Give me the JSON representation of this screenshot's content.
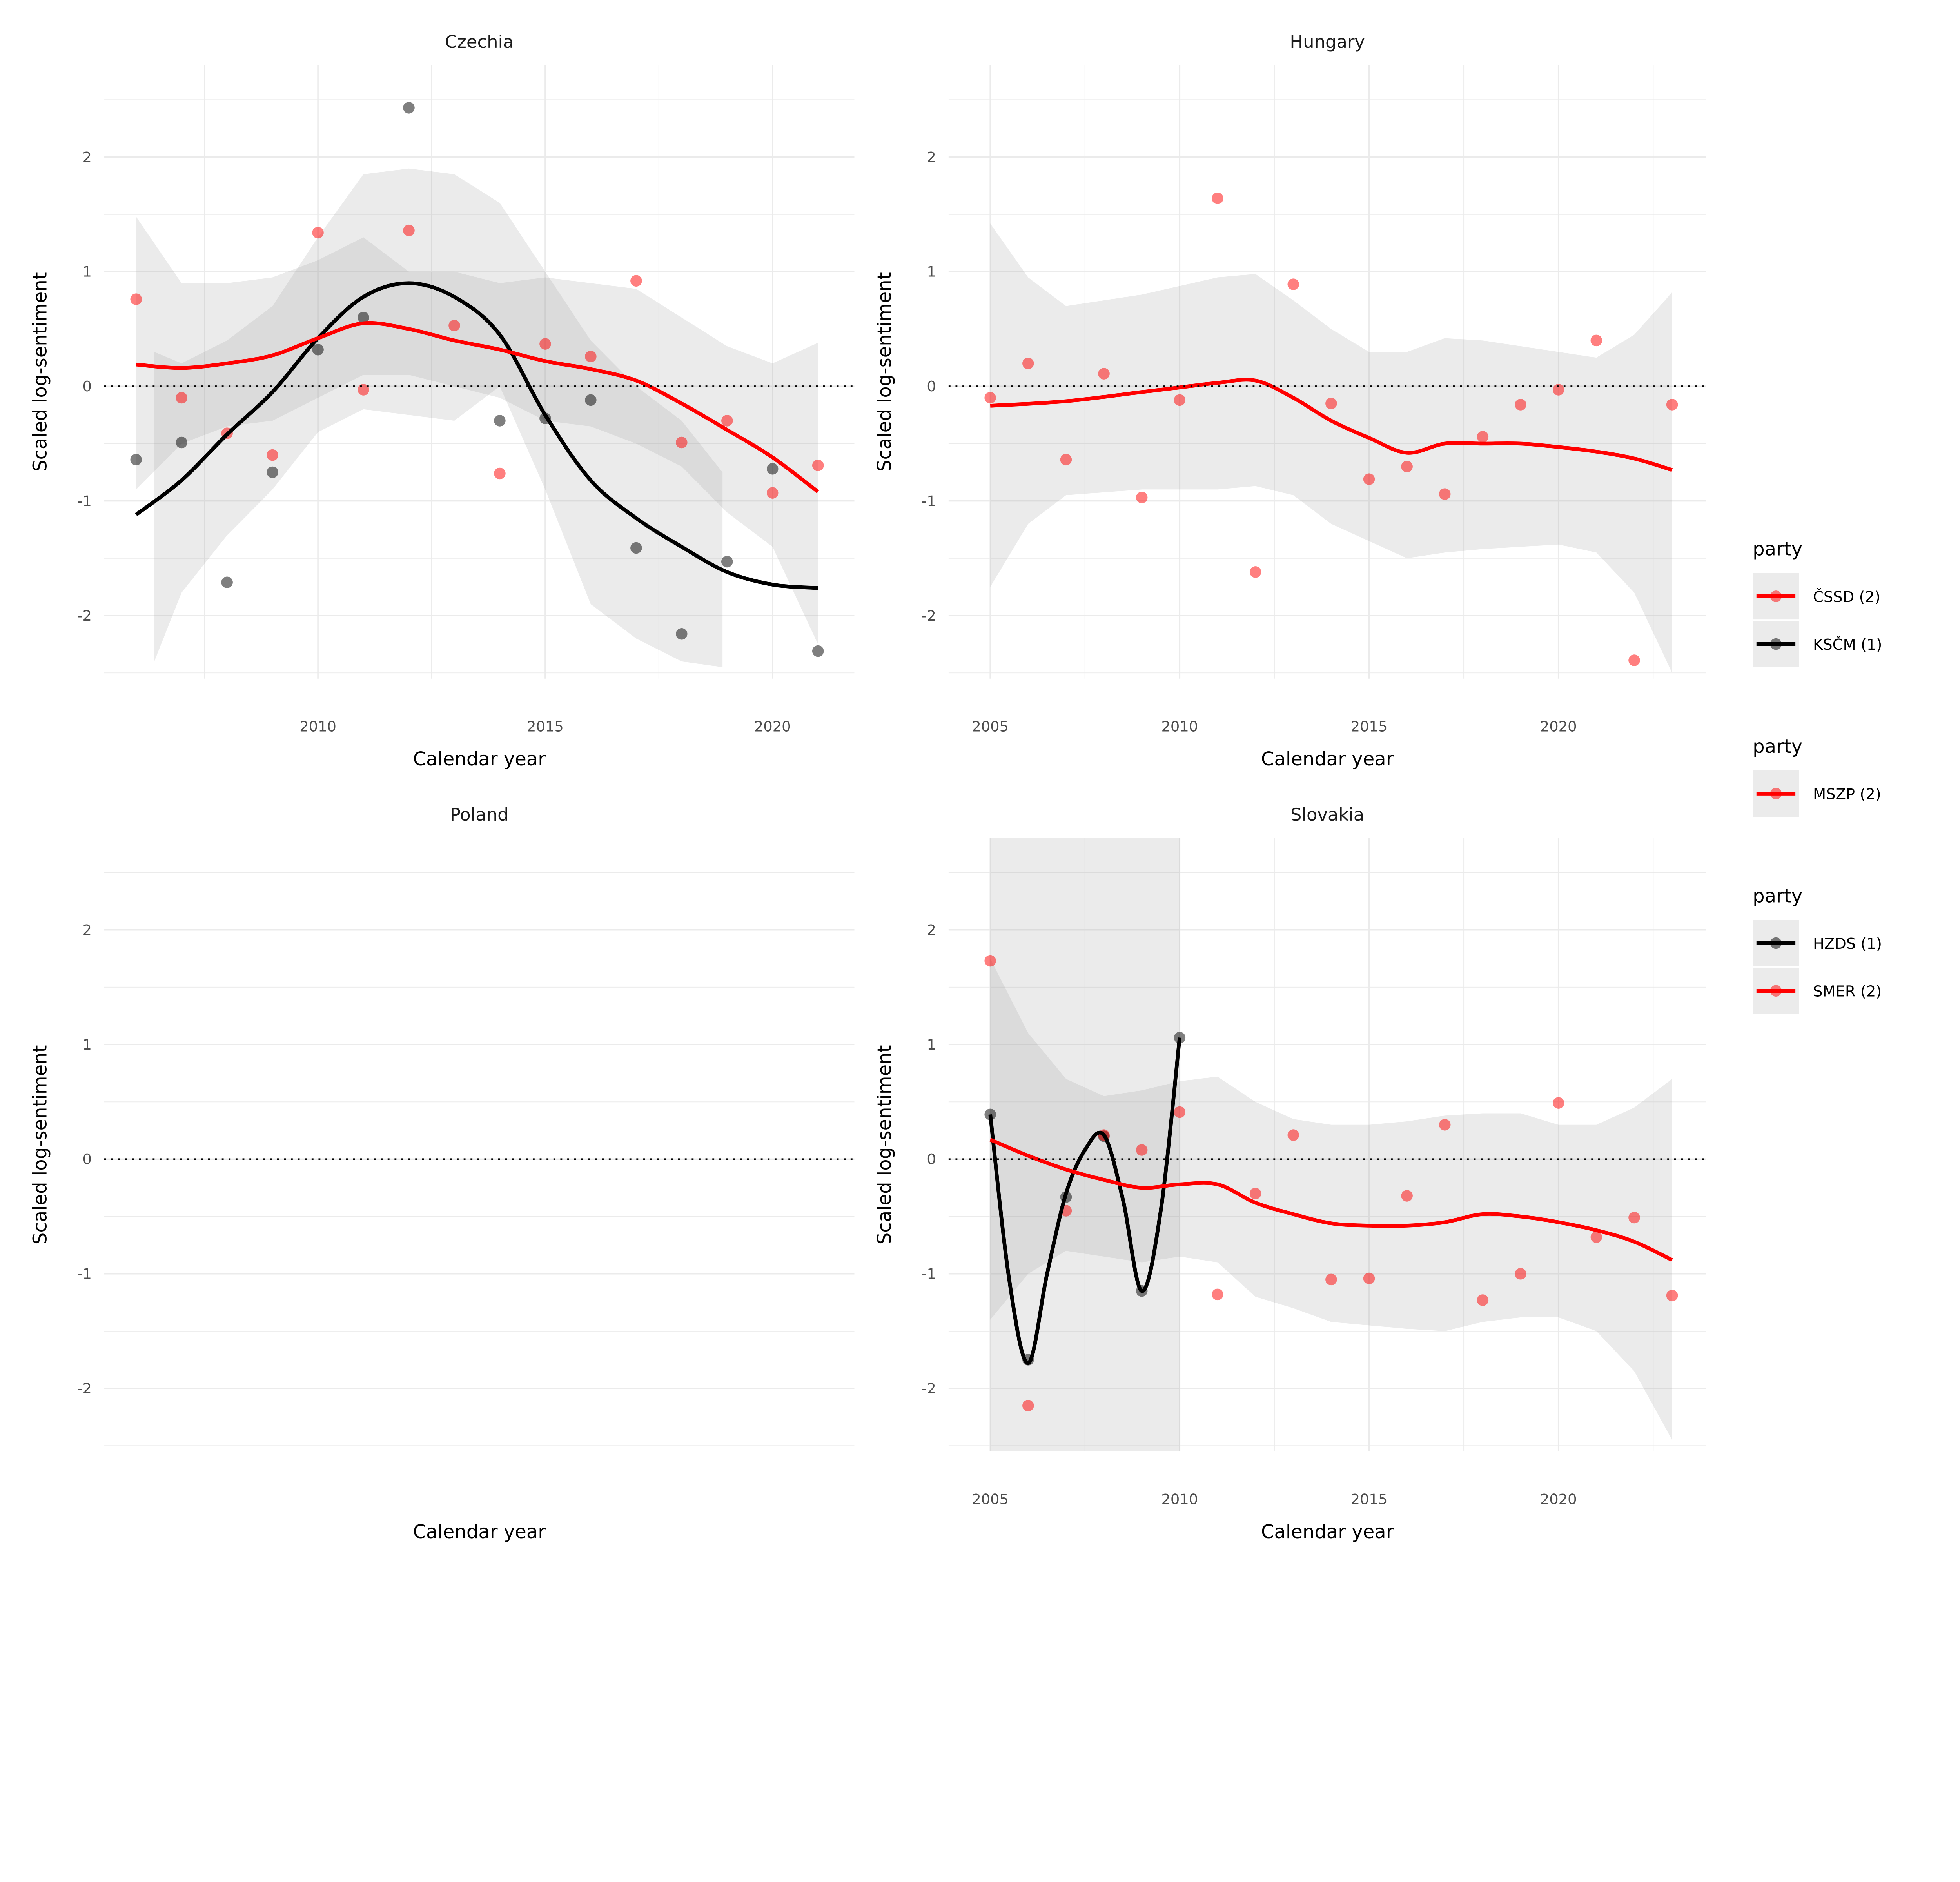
{
  "chart_data": [
    {
      "type": "scatter",
      "title": "Czechia",
      "xlabel": "Calendar year",
      "ylabel": "Scaled log-sentiment",
      "xlim": [
        2005.3,
        2021.8
      ],
      "ylim": [
        -2.55,
        2.8
      ],
      "xticks": [
        2010,
        2015,
        2020
      ],
      "yticks": [
        -2,
        -1,
        0,
        1,
        2
      ],
      "grid": true,
      "reference_line": {
        "y": 0,
        "style": "dotted"
      },
      "series": [
        {
          "name": "KSČM (1)",
          "color": "#000000",
          "points": {
            "x": [
              2006,
              2007,
              2008,
              2009,
              2010,
              2011,
              2012,
              2014,
              2015,
              2016,
              2017,
              2018,
              2019,
              2020,
              2021
            ],
            "y": [
              -0.64,
              -0.49,
              -1.71,
              -0.75,
              0.32,
              0.6,
              2.43,
              -0.3,
              -0.28,
              -0.12,
              -1.41,
              -2.16,
              -1.53,
              -0.72,
              -2.31
            ]
          },
          "smooth": {
            "x": [
              2006,
              2007,
              2008,
              2009,
              2010,
              2011,
              2012,
              2013,
              2014,
              2015,
              2016,
              2017,
              2018,
              2019,
              2020,
              2021
            ],
            "y": [
              -1.12,
              -0.82,
              -0.42,
              -0.05,
              0.42,
              0.78,
              0.9,
              0.78,
              0.45,
              -0.25,
              -0.82,
              -1.15,
              -1.4,
              -1.62,
              -1.73,
              -1.76
            ]
          },
          "band": {
            "x": [
              2006.4,
              2007,
              2008,
              2009,
              2010,
              2011,
              2012,
              2013,
              2014,
              2015,
              2016,
              2017,
              2018,
              2018.9
            ],
            "lo": [
              -2.4,
              -1.8,
              -1.3,
              -0.9,
              -0.4,
              -0.2,
              -0.25,
              -0.3,
              0.0,
              -0.9,
              -1.9,
              -2.2,
              -2.4,
              -2.45
            ],
            "hi": [
              0.3,
              0.2,
              0.4,
              0.7,
              1.3,
              1.85,
              1.9,
              1.85,
              1.6,
              1.0,
              0.4,
              0.0,
              -0.3,
              -0.75
            ]
          }
        },
        {
          "name": "ČSSD (2)",
          "color": "#FF0000",
          "points": {
            "x": [
              2006,
              2007,
              2008,
              2009,
              2010,
              2011,
              2012,
              2013,
              2014,
              2015,
              2016,
              2017,
              2018,
              2019,
              2020,
              2021
            ],
            "y": [
              0.76,
              -0.1,
              -0.41,
              -0.6,
              1.34,
              -0.03,
              1.36,
              0.53,
              -0.76,
              0.37,
              0.26,
              0.92,
              -0.49,
              -0.3,
              -0.93,
              -0.69
            ]
          },
          "smooth": {
            "x": [
              2006,
              2007,
              2008,
              2009,
              2010,
              2011,
              2012,
              2013,
              2014,
              2015,
              2016,
              2017,
              2018,
              2019,
              2020,
              2021
            ],
            "y": [
              0.19,
              0.16,
              0.2,
              0.27,
              0.42,
              0.55,
              0.5,
              0.4,
              0.32,
              0.22,
              0.15,
              0.05,
              -0.15,
              -0.38,
              -0.62,
              -0.92
            ]
          },
          "band": {
            "x": [
              2006,
              2007,
              2008,
              2009,
              2010,
              2011,
              2012,
              2013,
              2014,
              2015,
              2016,
              2017,
              2018,
              2019,
              2020,
              2021
            ],
            "lo": [
              -0.9,
              -0.5,
              -0.35,
              -0.3,
              -0.1,
              0.1,
              0.1,
              0.0,
              -0.1,
              -0.3,
              -0.35,
              -0.5,
              -0.7,
              -1.1,
              -1.4,
              -2.25
            ],
            "hi": [
              1.48,
              0.9,
              0.9,
              0.95,
              1.1,
              1.3,
              1.0,
              1.0,
              0.9,
              0.95,
              0.9,
              0.85,
              0.6,
              0.35,
              0.2,
              0.38
            ]
          }
        }
      ]
    },
    {
      "type": "scatter",
      "title": "Hungary",
      "xlabel": "Calendar year",
      "ylabel": "Scaled log-sentiment",
      "xlim": [
        2003.9,
        2023.9
      ],
      "ylim": [
        -2.55,
        2.8
      ],
      "xticks": [
        2005,
        2010,
        2015,
        2020
      ],
      "yticks": [
        -2,
        -1,
        0,
        1,
        2
      ],
      "grid": true,
      "reference_line": {
        "y": 0,
        "style": "dotted"
      },
      "series": [
        {
          "name": "MSZP (2)",
          "color": "#FF0000",
          "points": {
            "x": [
              2005,
              2006,
              2007,
              2008,
              2009,
              2010,
              2011,
              2012,
              2013,
              2014,
              2015,
              2016,
              2017,
              2018,
              2019,
              2020,
              2021,
              2022,
              2023
            ],
            "y": [
              -0.1,
              0.2,
              -0.64,
              0.11,
              -0.97,
              -0.12,
              1.64,
              -1.62,
              0.89,
              -0.15,
              -0.81,
              -0.7,
              -0.94,
              -0.44,
              -0.16,
              -0.03,
              0.4,
              -2.39,
              -0.16
            ]
          },
          "smooth": {
            "x": [
              2005,
              2007,
              2009,
              2010,
              2011,
              2012,
              2013,
              2014,
              2015,
              2016,
              2017,
              2018,
              2019,
              2020,
              2021,
              2022,
              2023
            ],
            "y": [
              -0.17,
              -0.13,
              -0.05,
              -0.01,
              0.03,
              0.05,
              -0.1,
              -0.3,
              -0.45,
              -0.58,
              -0.5,
              -0.5,
              -0.5,
              -0.53,
              -0.57,
              -0.63,
              -0.73
            ]
          },
          "band": {
            "x": [
              2005,
              2006,
              2007,
              2009,
              2011,
              2012,
              2013,
              2014,
              2015,
              2016,
              2017,
              2018,
              2020,
              2021,
              2022,
              2023
            ],
            "lo": [
              -1.75,
              -1.2,
              -0.95,
              -0.9,
              -0.9,
              -0.87,
              -0.95,
              -1.2,
              -1.35,
              -1.5,
              -1.45,
              -1.42,
              -1.38,
              -1.45,
              -1.8,
              -2.5
            ],
            "hi": [
              1.42,
              0.95,
              0.7,
              0.8,
              0.95,
              0.98,
              0.75,
              0.5,
              0.3,
              0.3,
              0.42,
              0.4,
              0.3,
              0.25,
              0.45,
              0.82
            ]
          }
        }
      ]
    },
    {
      "type": "scatter",
      "title": "Poland",
      "xlabel": "Calendar year",
      "ylabel": "Scaled log-sentiment",
      "xlim": [
        2005.3,
        2021.8
      ],
      "ylim": [
        -2.55,
        2.8
      ],
      "xticks": [],
      "yticks": [
        -2,
        -1,
        0,
        1,
        2
      ],
      "grid": true,
      "reference_line": {
        "y": 0,
        "style": "dotted"
      },
      "series": []
    },
    {
      "type": "scatter",
      "title": "Slovakia",
      "xlabel": "Calendar year",
      "ylabel": "Scaled log-sentiment",
      "xlim": [
        2003.9,
        2023.9
      ],
      "ylim": [
        -2.55,
        2.8
      ],
      "xticks": [
        2005,
        2010,
        2015,
        2020
      ],
      "yticks": [
        -2,
        -1,
        0,
        1,
        2
      ],
      "grid": true,
      "reference_line": {
        "y": 0,
        "style": "dotted"
      },
      "series": [
        {
          "name": "HZDS (1)",
          "color": "#000000",
          "points": {
            "x": [
              2005,
              2006,
              2007,
              2008,
              2009,
              2010
            ],
            "y": [
              0.39,
              -1.75,
              -0.33,
              0.2,
              -1.15,
              1.06
            ]
          },
          "smooth": {
            "x": [
              2005,
              2005.5,
              2006,
              2006.5,
              2007,
              2007.5,
              2008,
              2008.5,
              2009,
              2009.5,
              2010
            ],
            "y": [
              0.39,
              -1.05,
              -1.78,
              -1.0,
              -0.3,
              0.08,
              0.21,
              -0.35,
              -1.15,
              -0.45,
              1.06
            ]
          },
          "band": {
            "x": [
              2005,
              2010
            ],
            "lo": [
              -2.55,
              -2.55
            ],
            "hi": [
              2.8,
              2.8
            ]
          }
        },
        {
          "name": "SMER (2)",
          "color": "#FF0000",
          "points": {
            "x": [
              2005,
              2006,
              2007,
              2008,
              2009,
              2010,
              2011,
              2012,
              2013,
              2014,
              2015,
              2016,
              2017,
              2018,
              2019,
              2020,
              2021,
              2022,
              2023
            ],
            "y": [
              1.73,
              -2.15,
              -0.45,
              0.21,
              0.08,
              0.41,
              -1.18,
              -0.3,
              0.21,
              -1.05,
              -1.04,
              -0.32,
              0.3,
              -1.23,
              -1.0,
              0.49,
              -0.68,
              -0.51,
              -1.19
            ]
          },
          "smooth": {
            "x": [
              2005,
              2006,
              2007,
              2008,
              2009,
              2010,
              2011,
              2012,
              2013,
              2014,
              2015,
              2016,
              2017,
              2018,
              2019,
              2020,
              2021,
              2022,
              2023
            ],
            "y": [
              0.17,
              0.03,
              -0.09,
              -0.18,
              -0.25,
              -0.22,
              -0.22,
              -0.38,
              -0.48,
              -0.56,
              -0.58,
              -0.58,
              -0.55,
              -0.48,
              -0.5,
              -0.55,
              -0.62,
              -0.72,
              -0.88
            ]
          },
          "band": {
            "x": [
              2005,
              2006,
              2007,
              2008,
              2009,
              2010,
              2011,
              2012,
              2013,
              2014,
              2015,
              2016,
              2017,
              2018,
              2019,
              2020,
              2021,
              2022,
              2023
            ],
            "lo": [
              -1.4,
              -1.0,
              -0.8,
              -0.85,
              -0.9,
              -0.85,
              -0.9,
              -1.2,
              -1.3,
              -1.42,
              -1.45,
              -1.48,
              -1.5,
              -1.42,
              -1.38,
              -1.38,
              -1.5,
              -1.85,
              -2.45
            ],
            "hi": [
              1.75,
              1.1,
              0.7,
              0.55,
              0.6,
              0.68,
              0.72,
              0.5,
              0.35,
              0.3,
              0.3,
              0.33,
              0.38,
              0.4,
              0.4,
              0.3,
              0.3,
              0.45,
              0.7
            ]
          }
        }
      ]
    }
  ],
  "legends": [
    {
      "title": "party",
      "entries": [
        {
          "label": "ČSSD (2)",
          "color": "#FF0000"
        },
        {
          "label": "KSČM (1)",
          "color": "#000000"
        }
      ]
    },
    {
      "title": "party",
      "entries": [
        {
          "label": "MSZP (2)",
          "color": "#FF0000"
        }
      ]
    },
    {
      "title": "party",
      "entries": [
        {
          "label": "HZDS (1)",
          "color": "#000000"
        },
        {
          "label": "SMER (2)",
          "color": "#FF0000"
        }
      ]
    }
  ]
}
